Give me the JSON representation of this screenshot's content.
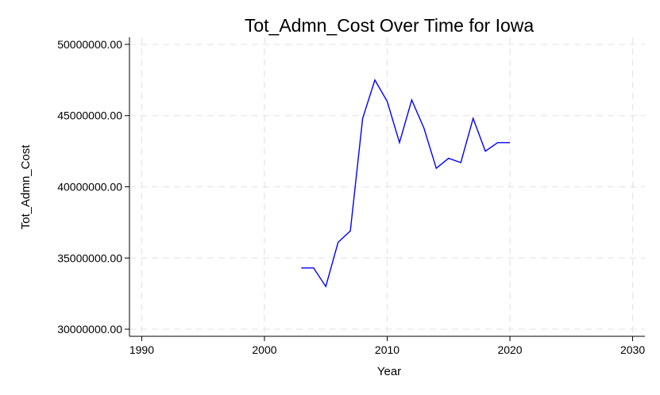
{
  "chart_data": {
    "type": "line",
    "title": "Tot_Admn_Cost Over Time for Iowa",
    "xlabel": "Year",
    "ylabel": "Tot_Admn_Cost",
    "xlim": [
      1989,
      2031
    ],
    "ylim": [
      29500000,
      50500000
    ],
    "xticks": [
      1990,
      2000,
      2010,
      2020,
      2030
    ],
    "yticks": [
      30000000,
      35000000,
      40000000,
      45000000,
      50000000
    ],
    "ytick_labels": [
      "30000000.00",
      "35000000.00",
      "40000000.00",
      "45000000.00",
      "50000000.00"
    ],
    "grid": true,
    "series": [
      {
        "color": "#0000ff",
        "x": [
          2003,
          2004,
          2005,
          2006,
          2007,
          2008,
          2009,
          2010,
          2011,
          2012,
          2013,
          2014,
          2015,
          2016,
          2017,
          2018,
          2019,
          2020
        ],
        "values": [
          34300000,
          34300000,
          33000000,
          36100000,
          36900000,
          44800000,
          47500000,
          46000000,
          43100000,
          46100000,
          44100000,
          41300000,
          42000000,
          41700000,
          44800000,
          42500000,
          43100000,
          43100000
        ]
      }
    ]
  }
}
